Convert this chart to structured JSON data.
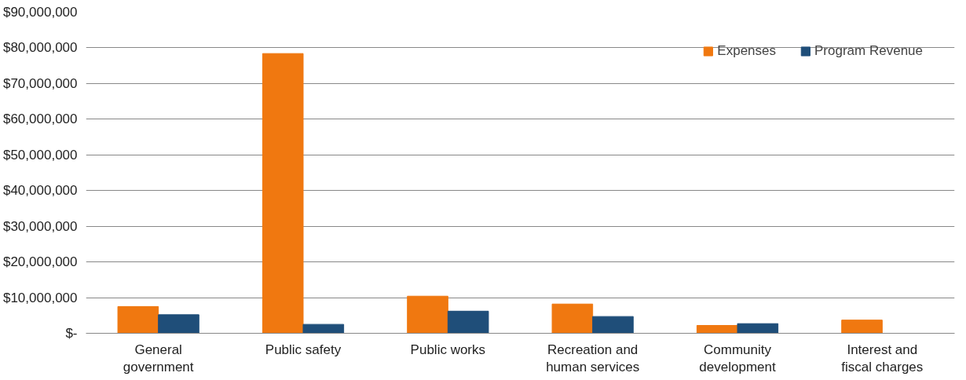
{
  "chart_data": {
    "type": "bar",
    "categories": [
      "General government",
      "Public safety",
      "Public works",
      "Recreation and human services",
      "Community development",
      "Interest and fiscal charges"
    ],
    "series": [
      {
        "name": "Expenses",
        "color": "#f07810",
        "values": [
          7500000,
          78400000,
          10400000,
          8200000,
          2200000,
          3700000
        ]
      },
      {
        "name": "Program Revenue",
        "color": "#1f4e79",
        "values": [
          5200000,
          2500000,
          6200000,
          4700000,
          2700000,
          null
        ]
      }
    ],
    "ylim": [
      0,
      90000000
    ],
    "yticks": [
      {
        "value": 0,
        "label": "$-"
      },
      {
        "value": 10000000,
        "label": "$10,000,000"
      },
      {
        "value": 20000000,
        "label": "$20,000,000"
      },
      {
        "value": 30000000,
        "label": "$30,000,000"
      },
      {
        "value": 40000000,
        "label": "$40,000,000"
      },
      {
        "value": 50000000,
        "label": "$50,000,000"
      },
      {
        "value": 60000000,
        "label": "$60,000,000"
      },
      {
        "value": 70000000,
        "label": "$70,000,000"
      },
      {
        "value": 80000000,
        "label": "$80,000,000"
      },
      {
        "value": 90000000,
        "label": "$90,000,000"
      }
    ],
    "grid": "y",
    "legend": "top right"
  }
}
